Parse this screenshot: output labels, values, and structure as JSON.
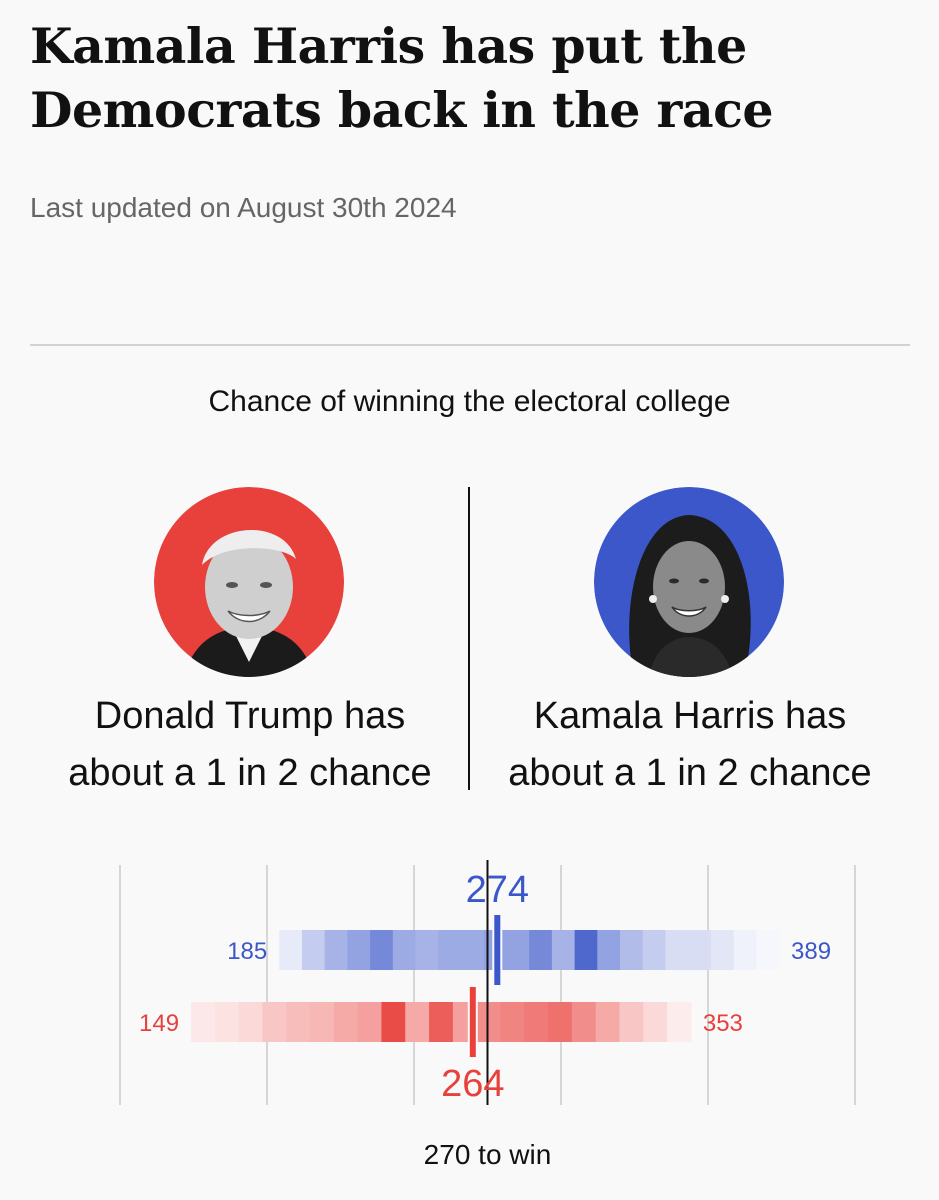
{
  "headline": "Kamala Harris has put the Democrats back in the race",
  "last_updated": "Last updated on August 30th 2024",
  "chart_title": "Chance of winning the electoral college",
  "candidates": {
    "trump": {
      "text_line1": "Donald Trump has",
      "text_line2": "about a 1 in 2 chance",
      "color": "#e8413c"
    },
    "harris": {
      "text_line1": "Kamala Harris has",
      "text_line2": "about a 1 in 2 chance",
      "color": "#3b57c9"
    }
  },
  "chart_data": {
    "type": "heatmap",
    "xlim": [
      80,
      460
    ],
    "gridlines": [
      120,
      270,
      420
    ],
    "threshold": 270,
    "threshold_label": "270 to win",
    "series": [
      {
        "color": "#3b57c9",
        "min": 185,
        "max": 389,
        "median": 274,
        "min_label": "185",
        "max_label": "389",
        "median_label": "274",
        "bin_width": 12,
        "density": [
          0.12,
          0.3,
          0.45,
          0.55,
          0.7,
          0.5,
          0.45,
          0.5,
          0.5,
          0.55,
          0.55,
          0.7,
          0.45,
          0.9,
          0.55,
          0.4,
          0.3,
          0.2,
          0.2,
          0.15,
          0.08,
          0.05
        ]
      },
      {
        "color": "#e8413c",
        "min": 149,
        "max": 353,
        "median": 264,
        "min_label": "149",
        "max_label": "353",
        "median_label": "264",
        "bin_width": 12,
        "density": [
          0.12,
          0.15,
          0.2,
          0.3,
          0.35,
          0.38,
          0.45,
          0.5,
          0.95,
          0.45,
          0.85,
          0.5,
          0.6,
          0.65,
          0.7,
          0.75,
          0.6,
          0.45,
          0.3,
          0.2,
          0.1
        ]
      }
    ]
  }
}
